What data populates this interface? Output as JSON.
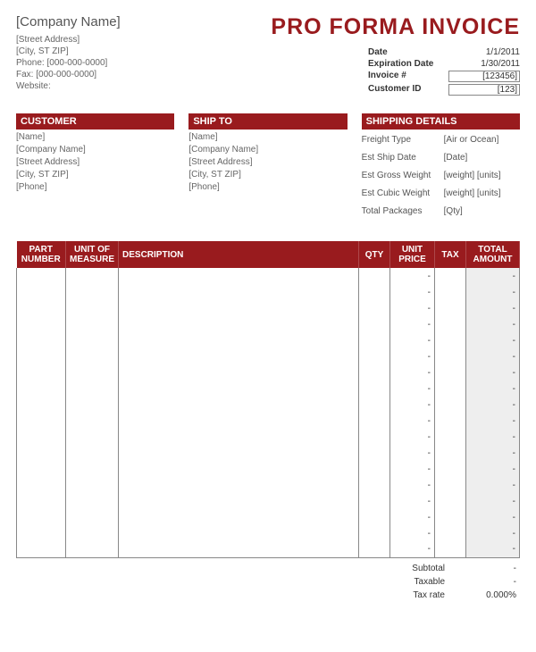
{
  "colors": {
    "brand": "#991b1e",
    "text": "#333333",
    "muted": "#666666",
    "border": "#888888",
    "shade": "#eeeeee",
    "white": "#ffffff"
  },
  "header": {
    "title": "PRO FORMA INVOICE",
    "company_name": "[Company Name]",
    "street": "[Street Address]",
    "city_st_zip": "[City, ST  ZIP]",
    "phone_label": "Phone:",
    "phone": "[000-000-0000]",
    "fax_label": "Fax:",
    "fax": "[000-000-0000]",
    "website_label": "Website:",
    "website": ""
  },
  "meta": [
    {
      "label": "Date",
      "value": "1/1/2011",
      "boxed": false
    },
    {
      "label": "Expiration Date",
      "value": "1/30/2011",
      "boxed": false
    },
    {
      "label": "Invoice #",
      "value": "[123456]",
      "boxed": true
    },
    {
      "label": "Customer ID",
      "value": "[123]",
      "boxed": true
    }
  ],
  "customer": {
    "heading": "CUSTOMER",
    "lines": [
      "[Name]",
      "[Company Name]",
      "[Street Address]",
      "[City, ST  ZIP]",
      "[Phone]"
    ]
  },
  "shipto": {
    "heading": "SHIP TO",
    "lines": [
      "[Name]",
      "[Company Name]",
      "[Street Address]",
      "[City, ST  ZIP]",
      "[Phone]"
    ]
  },
  "shipping": {
    "heading": "SHIPPING DETAILS",
    "rows": [
      {
        "label": "Freight Type",
        "value": "[Air or Ocean]"
      },
      {
        "label": "Est Ship Date",
        "value": "[Date]"
      },
      {
        "label": "Est Gross Weight",
        "value": "[weight]  [units]"
      },
      {
        "label": "Est Cubic Weight",
        "value": "[weight]  [units]"
      },
      {
        "label": "Total Packages",
        "value": "[Qty]"
      }
    ]
  },
  "table": {
    "columns": [
      "PART NUMBER",
      "UNIT OF MEASURE",
      "DESCRIPTION",
      "QTY",
      "UNIT PRICE",
      "TAX",
      "TOTAL AMOUNT"
    ],
    "row_count": 18,
    "price_placeholder": "-",
    "total_placeholder": "-"
  },
  "totals": {
    "subtotal_label": "Subtotal",
    "subtotal_value": "-",
    "taxable_label": "Taxable",
    "taxable_value": "-",
    "taxrate_label": "Tax rate",
    "taxrate_value": "0.000%"
  }
}
